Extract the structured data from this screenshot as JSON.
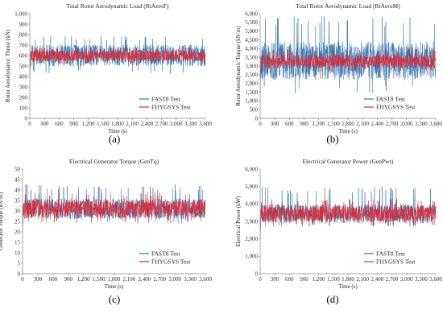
{
  "chart_data": [
    {
      "type": "line",
      "panel": "(a)",
      "title": "Total Rotor Aerodynamic Load (RtAeroF)",
      "xlabel": "Time (s)",
      "ylabel": "Rotor Aerodynamic Thrust (kN)",
      "xlim": [
        0,
        3600
      ],
      "ylim": [
        0,
        1000
      ],
      "x_ticks": [
        0,
        300,
        600,
        900,
        1200,
        1500,
        1800,
        2100,
        2400,
        2700,
        3000,
        3300,
        3600
      ],
      "x_tick_labels": [
        "0",
        "300",
        "600",
        "900",
        "1,200",
        "1,500",
        "1,800",
        "2,100",
        "2,400",
        "2,700",
        "3,000",
        "3,300",
        "3,600"
      ],
      "y_ticks": [
        0,
        100,
        200,
        300,
        400,
        500,
        600,
        700,
        800,
        900,
        1000
      ],
      "y_tick_labels": [
        "0",
        "100",
        "200",
        "300",
        "400",
        "500",
        "600",
        "700",
        "800",
        "900",
        "1,000"
      ],
      "grid": false,
      "legend": "bottom-right",
      "series": [
        {
          "name": "FAST8 Test",
          "color": "#2e75b6",
          "start_value": 350,
          "mean": 600,
          "amplitude": 105,
          "spike_max": 790,
          "spike_min": 420
        },
        {
          "name": "FHYGSYS Test",
          "color": "#e8242a",
          "start_value": 420,
          "mean": 598,
          "amplitude": 55,
          "spike_max": 680,
          "spike_min": 520
        }
      ]
    },
    {
      "type": "line",
      "panel": "(b)",
      "title": "Total Rotor Aerodynamic Load (RtAeroM)",
      "xlabel": "Time (s)",
      "ylabel": "Rotor Aerodynamic Torque (kN·m)",
      "xlim": [
        0,
        3600
      ],
      "ylim": [
        0,
        6000
      ],
      "x_ticks": [
        0,
        300,
        600,
        900,
        1200,
        1500,
        1800,
        2100,
        2400,
        2700,
        3000,
        3300,
        3600
      ],
      "x_tick_labels": [
        "0",
        "300",
        "600",
        "900",
        "1,200",
        "1,500",
        "1,800",
        "2,100",
        "2,400",
        "2,700",
        "3,000",
        "3,300",
        "3,600"
      ],
      "y_ticks": [
        0,
        500,
        1000,
        1500,
        2000,
        2500,
        3000,
        3500,
        4000,
        4500,
        5000,
        5500,
        6000
      ],
      "y_tick_labels": [
        "0",
        "500",
        "1,000",
        "1,500",
        "2,000",
        "2,500",
        "3,000",
        "3,500",
        "4,000",
        "4,500",
        "5,000",
        "5,500",
        "6,000"
      ],
      "grid": false,
      "legend": "bottom-right",
      "series": [
        {
          "name": "FAST8 Test",
          "color": "#2e75b6",
          "start_value": 1500,
          "mean": 3300,
          "amplitude": 1100,
          "spike_max": 5900,
          "spike_min": 1400
        },
        {
          "name": "FHYGSYS Test",
          "color": "#e8242a",
          "start_value": 2200,
          "mean": 3250,
          "amplitude": 380,
          "spike_max": 4000,
          "spike_min": 2600
        }
      ]
    },
    {
      "type": "line",
      "panel": "(c)",
      "title": "Electrical Generator Torque (GenTq)",
      "xlabel": "Time (s)",
      "ylabel": "Generator Torque (kN·m)",
      "xlim": [
        0,
        3600
      ],
      "ylim": [
        0,
        50
      ],
      "x_ticks": [
        0,
        300,
        600,
        900,
        1200,
        1500,
        1800,
        2100,
        2400,
        2700,
        3000,
        3300,
        3600
      ],
      "x_tick_labels": [
        "0",
        "300",
        "600",
        "900",
        "1,200",
        "1,500",
        "1,800",
        "2,100",
        "2,400",
        "2,700",
        "3,000",
        "3,300",
        "3,600"
      ],
      "y_ticks": [
        0,
        5,
        10,
        15,
        20,
        25,
        30,
        35,
        40,
        45,
        50
      ],
      "y_tick_labels": [
        "0",
        "5",
        "10",
        "15",
        "20",
        "25",
        "30",
        "35",
        "40",
        "45",
        "50"
      ],
      "grid": false,
      "legend": "bottom-right",
      "series": [
        {
          "name": "FAST8 Test",
          "color": "#2e75b6",
          "start_value": 20,
          "mean": 31,
          "amplitude": 5,
          "spike_max": 43,
          "spike_min": 24
        },
        {
          "name": "FHYGSYS Test",
          "color": "#e8242a",
          "start_value": 20,
          "mean": 31,
          "amplitude": 4.5,
          "spike_max": 39,
          "spike_min": 24
        }
      ]
    },
    {
      "type": "line",
      "panel": "(d)",
      "title": "Electrical Generator Power (GenPwr)",
      "xlabel": "Time (s)",
      "ylabel": "Electrical Power (kW)",
      "xlim": [
        0,
        3600
      ],
      "ylim": [
        0,
        6000
      ],
      "x_ticks": [
        0,
        300,
        600,
        900,
        1200,
        1500,
        1800,
        2100,
        2400,
        2700,
        3000,
        3300,
        3600
      ],
      "x_tick_labels": [
        "0",
        "300",
        "600",
        "900",
        "1,200",
        "1,500",
        "1,800",
        "2,100",
        "2,400",
        "2,700",
        "3,000",
        "3,300",
        "3,600"
      ],
      "y_ticks": [
        0,
        1000,
        2000,
        3000,
        4000,
        5000,
        6000
      ],
      "y_tick_labels": [
        "0",
        "1,000",
        "2,000",
        "3,000",
        "4,000",
        "5,000",
        "6,000"
      ],
      "grid": false,
      "legend": "bottom-right",
      "series": [
        {
          "name": "FAST8 Test",
          "color": "#2e75b6",
          "start_value": 2000,
          "mean": 3450,
          "amplitude": 550,
          "spike_max": 5000,
          "spike_min": 2700
        },
        {
          "name": "FHYGSYS Test",
          "color": "#e8242a",
          "start_value": 2000,
          "mean": 3450,
          "amplitude": 480,
          "spike_max": 4300,
          "spike_min": 2700
        }
      ]
    }
  ]
}
